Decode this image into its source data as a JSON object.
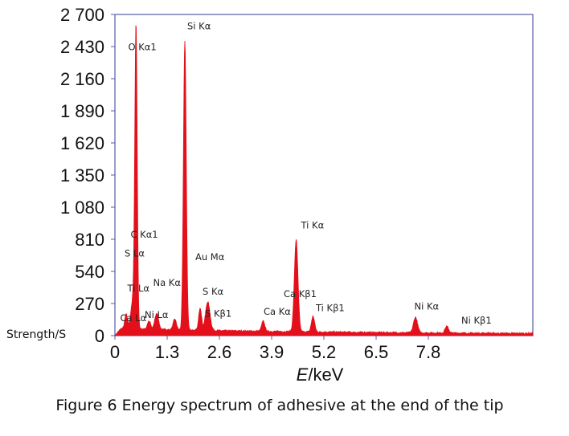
{
  "caption": "Figure 6 Energy spectrum of adhesive at the end of the tip",
  "chart_data": {
    "type": "line",
    "xlabel_var": "E",
    "xlabel_unit": "/keV",
    "ylabel": "Strength/S",
    "xlim": [
      0,
      10.4
    ],
    "ylim": [
      0,
      2700
    ],
    "xticks": [
      {
        "value": 0,
        "label": "0"
      },
      {
        "value": 1.3,
        "label": "1.3"
      },
      {
        "value": 2.6,
        "label": "2.6"
      },
      {
        "value": 3.9,
        "label": "3.9"
      },
      {
        "value": 5.2,
        "label": "5.2"
      },
      {
        "value": 6.5,
        "label": "6.5"
      },
      {
        "value": 7.8,
        "label": "7.8"
      }
    ],
    "yticks": [
      {
        "value": 0,
        "label": "0"
      },
      {
        "value": 270,
        "label": "270"
      },
      {
        "value": 540,
        "label": "540"
      },
      {
        "value": 810,
        "label": "810"
      },
      {
        "value": 1080,
        "label": "1 080"
      },
      {
        "value": 1350,
        "label": "1 350"
      },
      {
        "value": 1620,
        "label": "1 620"
      },
      {
        "value": 1890,
        "label": "1 890"
      },
      {
        "value": 2160,
        "label": "2 160"
      },
      {
        "value": 2430,
        "label": "2 430"
      },
      {
        "value": 2700,
        "label": "2 700"
      }
    ],
    "baseline": 50,
    "series": [
      {
        "color": "#e3101b",
        "peaks": [
          {
            "x": 0.28,
            "y": 120,
            "w": 0.035
          },
          {
            "x": 0.525,
            "y": 2490,
            "w": 0.03
          },
          {
            "x": 0.45,
            "y": 250,
            "w": 0.05
          },
          {
            "x": 0.85,
            "y": 70,
            "w": 0.04
          },
          {
            "x": 1.04,
            "y": 140,
            "w": 0.045
          },
          {
            "x": 1.49,
            "y": 90,
            "w": 0.04
          },
          {
            "x": 1.74,
            "y": 2430,
            "w": 0.035
          },
          {
            "x": 2.12,
            "y": 190,
            "w": 0.035
          },
          {
            "x": 2.31,
            "y": 240,
            "w": 0.055
          },
          {
            "x": 3.69,
            "y": 85,
            "w": 0.04
          },
          {
            "x": 4.51,
            "y": 770,
            "w": 0.045
          },
          {
            "x": 4.93,
            "y": 130,
            "w": 0.04
          },
          {
            "x": 7.48,
            "y": 130,
            "w": 0.05
          },
          {
            "x": 8.26,
            "y": 55,
            "w": 0.045
          }
        ]
      }
    ],
    "annotations": [
      {
        "label": "O Kα1",
        "x": 0.33,
        "y": 2400
      },
      {
        "label": "Si Kα",
        "x": 1.8,
        "y": 2575
      },
      {
        "label": "C Kα1",
        "x": 0.39,
        "y": 825
      },
      {
        "label": "S Lα",
        "x": 0.24,
        "y": 665
      },
      {
        "label": "Ti Lα",
        "x": 0.31,
        "y": 370
      },
      {
        "label": "Na Kα",
        "x": 0.95,
        "y": 420
      },
      {
        "label": "Ni Lα",
        "x": 0.74,
        "y": 150
      },
      {
        "label": "Ca Lα",
        "x": 0.13,
        "y": 120
      },
      {
        "label": "Au Mα",
        "x": 2.0,
        "y": 635
      },
      {
        "label": "S Kα",
        "x": 2.18,
        "y": 345
      },
      {
        "label": "S Kβ1",
        "x": 2.24,
        "y": 160
      },
      {
        "label": "Ca Kα",
        "x": 3.7,
        "y": 175
      },
      {
        "label": "Ca Kβ1",
        "x": 4.2,
        "y": 325
      },
      {
        "label": "Ti Kα",
        "x": 4.63,
        "y": 900
      },
      {
        "label": "Ti Kβ1",
        "x": 5.0,
        "y": 205
      },
      {
        "label": "Ni Kα",
        "x": 7.45,
        "y": 220
      },
      {
        "label": "Ni Kβ1",
        "x": 8.62,
        "y": 100
      }
    ]
  }
}
